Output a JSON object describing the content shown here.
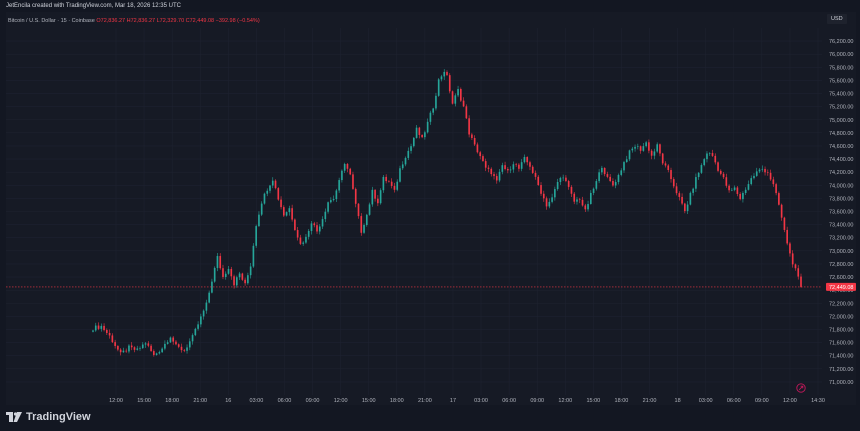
{
  "header": {
    "attribution": "JetEncila created with TradingView.com, Mar 18, 2026 12:35 UTC"
  },
  "symbol": {
    "name": "Bitcoin / U.S. Dollar · 15 · Coinbase",
    "ohlc": "O72,836.27 H72,836.27 L72,329.70 C72,449.08 −392.98 (−0.54%)"
  },
  "currency_tag": "USD",
  "footer": {
    "brand": "TradingView"
  },
  "colors": {
    "background": "#131722",
    "up": "#26a69a",
    "down": "#f23645",
    "grid": "#1e2230",
    "axis_text": "#b2b5be",
    "price_line": "#f23645"
  },
  "chart_data": {
    "type": "candlestick",
    "title": "Bitcoin / U.S. Dollar · 15 · Coinbase",
    "ylabel": "USD",
    "ylim": [
      70800,
      76400
    ],
    "y_ticks": [
      "71,000.00",
      "71,200.00",
      "71,400.00",
      "71,600.00",
      "71,800.00",
      "72,000.00",
      "72,200.00",
      "72,400.00",
      "72,600.00",
      "72,800.00",
      "73,000.00",
      "73,200.00",
      "73,400.00",
      "73,600.00",
      "73,800.00",
      "74,000.00",
      "74,200.00",
      "74,400.00",
      "74,600.00",
      "74,800.00",
      "75,000.00",
      "75,200.00",
      "75,400.00",
      "75,600.00",
      "75,800.00",
      "76,000.00",
      "76,200.00"
    ],
    "x_ticks": [
      "12:00",
      "15:00",
      "18:00",
      "21:00",
      "16",
      "03:00",
      "06:00",
      "09:00",
      "12:00",
      "15:00",
      "18:00",
      "21:00",
      "17",
      "03:00",
      "06:00",
      "09:00",
      "12:00",
      "15:00",
      "18:00",
      "21:00",
      "18",
      "03:00",
      "06:00",
      "09:00",
      "12:00",
      "14:30"
    ],
    "last_price_label": "72,449.08",
    "last_price": 72449.08,
    "grid": true,
    "close_path": [
      [
        0,
        71820
      ],
      [
        3,
        71850
      ],
      [
        6,
        71700
      ],
      [
        8,
        71560
      ],
      [
        10,
        71420
      ],
      [
        13,
        71520
      ],
      [
        16,
        71480
      ],
      [
        19,
        71600
      ],
      [
        22,
        71400
      ],
      [
        25,
        71520
      ],
      [
        28,
        71700
      ],
      [
        30,
        71540
      ],
      [
        33,
        71480
      ],
      [
        36,
        71680
      ],
      [
        39,
        71980
      ],
      [
        41,
        72180
      ],
      [
        43,
        72550
      ],
      [
        45,
        72900
      ],
      [
        47,
        72600
      ],
      [
        49,
        72750
      ],
      [
        51,
        72500
      ],
      [
        53,
        72650
      ],
      [
        55,
        72480
      ],
      [
        57,
        72780
      ],
      [
        59,
        73400
      ],
      [
        61,
        73750
      ],
      [
        63,
        73950
      ],
      [
        65,
        74100
      ],
      [
        67,
        73800
      ],
      [
        69,
        73550
      ],
      [
        71,
        73650
      ],
      [
        73,
        73350
      ],
      [
        75,
        73100
      ],
      [
        77,
        73200
      ],
      [
        79,
        73450
      ],
      [
        81,
        73300
      ],
      [
        83,
        73500
      ],
      [
        85,
        73750
      ],
      [
        87,
        73800
      ],
      [
        89,
        74050
      ],
      [
        91,
        74350
      ],
      [
        93,
        74150
      ],
      [
        95,
        73700
      ],
      [
        97,
        73300
      ],
      [
        99,
        73550
      ],
      [
        101,
        73900
      ],
      [
        103,
        73750
      ],
      [
        105,
        74100
      ],
      [
        107,
        74050
      ],
      [
        109,
        73900
      ],
      [
        111,
        74250
      ],
      [
        113,
        74450
      ],
      [
        115,
        74600
      ],
      [
        117,
        74850
      ],
      [
        119,
        74700
      ],
      [
        121,
        74950
      ],
      [
        123,
        75200
      ],
      [
        125,
        75600
      ],
      [
        127,
        75750
      ],
      [
        128,
        75650
      ],
      [
        130,
        75250
      ],
      [
        132,
        75450
      ],
      [
        134,
        75200
      ],
      [
        136,
        74800
      ],
      [
        138,
        74600
      ],
      [
        140,
        74450
      ],
      [
        142,
        74250
      ],
      [
        144,
        74200
      ],
      [
        146,
        74050
      ],
      [
        148,
        74300
      ],
      [
        150,
        74200
      ],
      [
        152,
        74350
      ],
      [
        154,
        74250
      ],
      [
        156,
        74400
      ],
      [
        158,
        74300
      ],
      [
        160,
        74100
      ],
      [
        162,
        73900
      ],
      [
        164,
        73700
      ],
      [
        166,
        73800
      ],
      [
        168,
        74050
      ],
      [
        170,
        74150
      ],
      [
        172,
        73950
      ],
      [
        174,
        73750
      ],
      [
        176,
        73800
      ],
      [
        178,
        73600
      ],
      [
        180,
        73850
      ],
      [
        182,
        74050
      ],
      [
        184,
        74300
      ],
      [
        186,
        74100
      ],
      [
        188,
        74000
      ],
      [
        190,
        74150
      ],
      [
        192,
        74350
      ],
      [
        194,
        74500
      ],
      [
        196,
        74600
      ],
      [
        198,
        74550
      ],
      [
        200,
        74650
      ],
      [
        202,
        74450
      ],
      [
        204,
        74600
      ],
      [
        206,
        74350
      ],
      [
        208,
        74200
      ],
      [
        210,
        74000
      ],
      [
        212,
        73800
      ],
      [
        214,
        73600
      ],
      [
        216,
        73850
      ],
      [
        218,
        74100
      ],
      [
        220,
        74300
      ],
      [
        222,
        74500
      ],
      [
        224,
        74450
      ],
      [
        226,
        74250
      ],
      [
        228,
        74100
      ],
      [
        230,
        73900
      ],
      [
        232,
        73950
      ],
      [
        234,
        73800
      ],
      [
        236,
        73950
      ],
      [
        238,
        74100
      ],
      [
        240,
        74200
      ],
      [
        242,
        74250
      ],
      [
        244,
        74200
      ],
      [
        246,
        74000
      ],
      [
        248,
        73700
      ],
      [
        250,
        73300
      ],
      [
        252,
        72950
      ],
      [
        254,
        72700
      ],
      [
        256,
        72449.08
      ]
    ]
  }
}
